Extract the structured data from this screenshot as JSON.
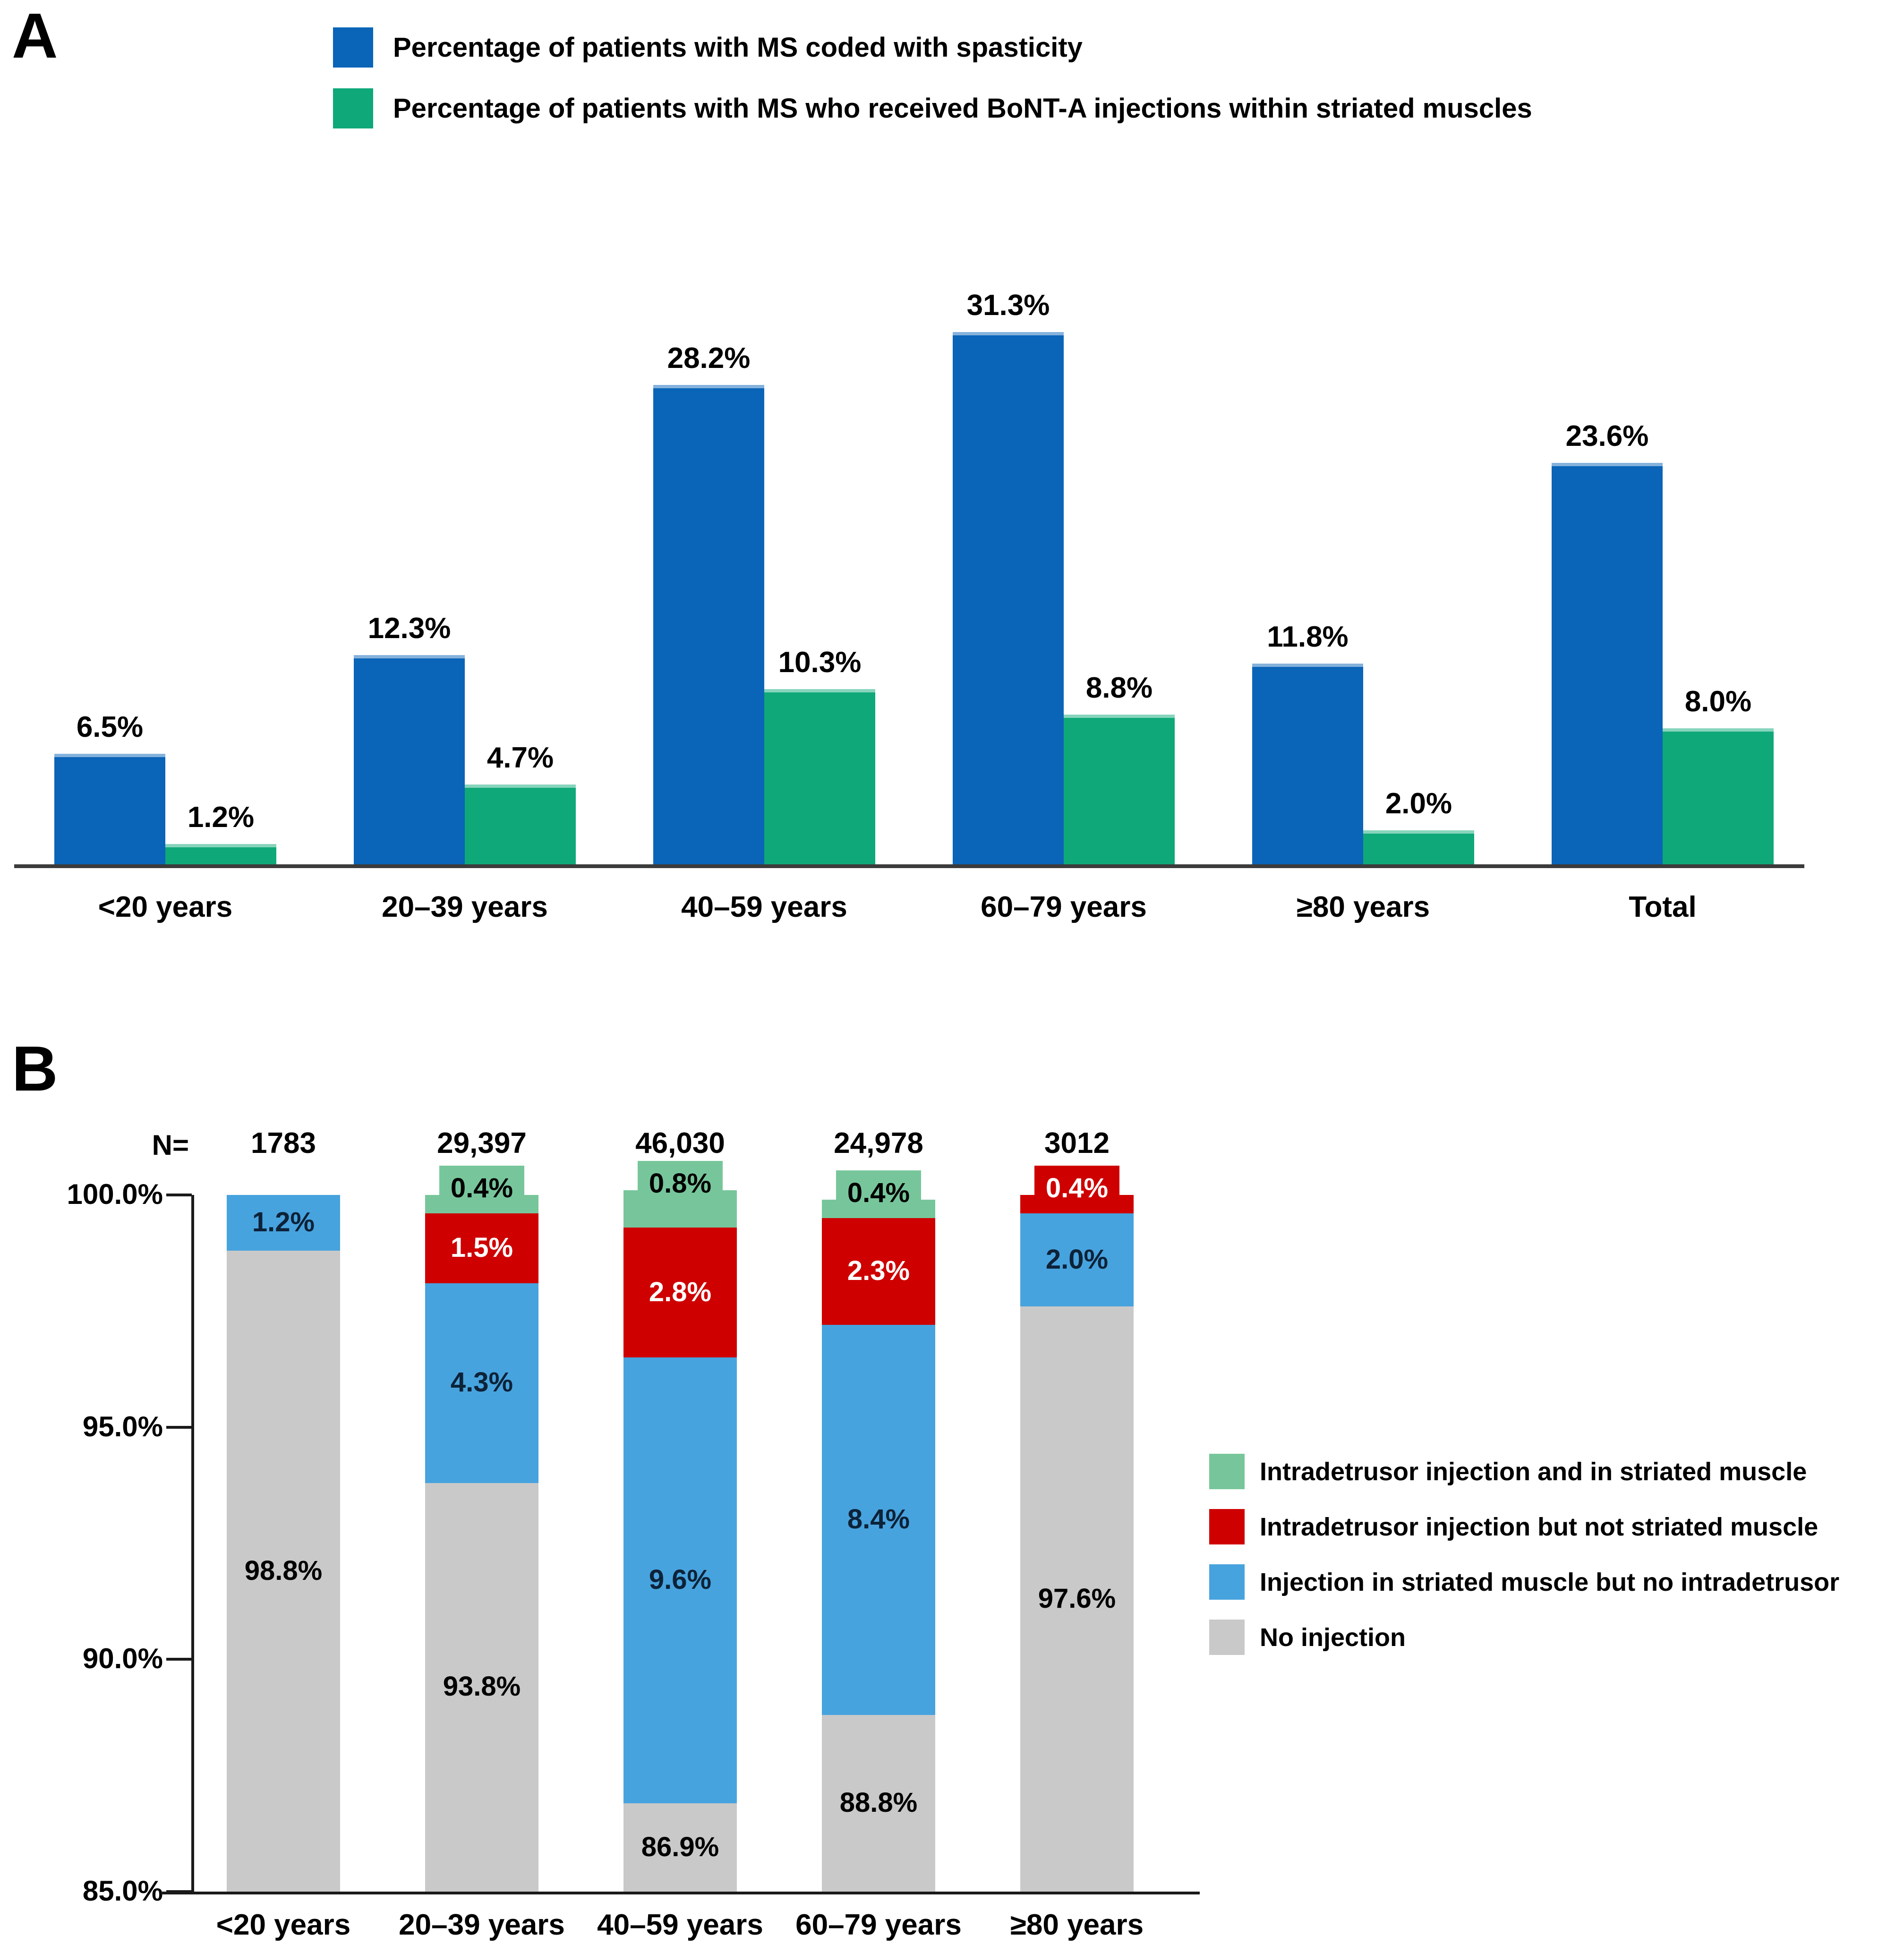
{
  "page": {
    "panel_a_label": "A",
    "panel_b_label": "B",
    "n_prefix": "N="
  },
  "chart_data": [
    {
      "id": "A",
      "type": "bar",
      "categories": [
        "<20 years",
        "20–39 years",
        "40–59 years",
        "60–79 years",
        "≥80 years",
        "Total"
      ],
      "series": [
        {
          "name": "Percentage of patients with MS coded with spasticity",
          "color": "#0A64B8",
          "values": [
            6.5,
            12.3,
            28.2,
            31.3,
            11.8,
            23.6
          ]
        },
        {
          "name": "Percentage of patients with MS who received BoNT-A injections within striated muscles",
          "color": "#0FA878",
          "values": [
            1.2,
            4.7,
            10.3,
            8.8,
            2.0,
            8.0
          ]
        }
      ],
      "value_suffix": "%",
      "ylim": [
        0,
        35
      ],
      "grid": false,
      "legend_position": "top"
    },
    {
      "id": "B",
      "type": "stacked-bar",
      "categories": [
        "<20 years",
        "20–39 years",
        "40–59 years",
        "60–79 years",
        "≥80 years"
      ],
      "n_values": [
        "1783",
        "29,397",
        "46,030",
        "24,978",
        "3012"
      ],
      "y_ticks": [
        "100.0%",
        "95.0%",
        "90.0%",
        "85.0%"
      ],
      "y_min": 85,
      "y_max": 100,
      "grid": false,
      "legend_position": "right",
      "series": [
        {
          "name": "Intradetrusor injection and in striated muscle",
          "color": "#77C69B",
          "label_color": "#000000",
          "values": [
            null,
            0.4,
            0.8,
            0.4,
            null
          ]
        },
        {
          "name": "Intradetrusor injection but not striated muscle",
          "color": "#CE0000",
          "label_color": "#FFFFFF",
          "values": [
            null,
            1.5,
            2.8,
            2.3,
            0.4
          ]
        },
        {
          "name": "Injection in striated muscle but no intradetrusor",
          "color": "#47A3DE",
          "label_color": "#0D2238",
          "values": [
            1.2,
            4.3,
            9.6,
            8.4,
            2.0
          ]
        },
        {
          "name": "No injection",
          "color": "#C9C9C9",
          "label_color": "#000000",
          "values": [
            98.8,
            93.8,
            86.9,
            88.8,
            97.6
          ]
        }
      ]
    }
  ]
}
